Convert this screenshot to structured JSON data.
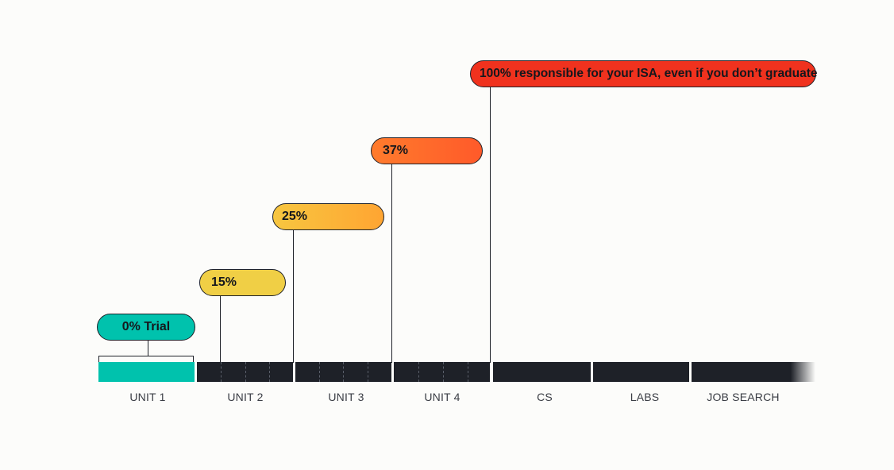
{
  "milestones": [
    {
      "label": "0% Trial",
      "color": "#00c2ad"
    },
    {
      "label": "15%",
      "color": "#f0cf45"
    },
    {
      "label": "25%",
      "color": "#f8b93c"
    },
    {
      "label": "37%",
      "color": "#ff6b2c"
    },
    {
      "label": "100% responsible for your ISA, even if you don’t graduate",
      "color": "#f0321e"
    }
  ],
  "segments": [
    {
      "label": "UNIT 1"
    },
    {
      "label": "UNIT 2"
    },
    {
      "label": "UNIT 3"
    },
    {
      "label": "UNIT 4"
    },
    {
      "label": "CS"
    },
    {
      "label": "LABS"
    },
    {
      "label": "JOB SEARCH"
    }
  ],
  "colors": {
    "bar": "#1e2128",
    "trial": "#00c2ad"
  }
}
